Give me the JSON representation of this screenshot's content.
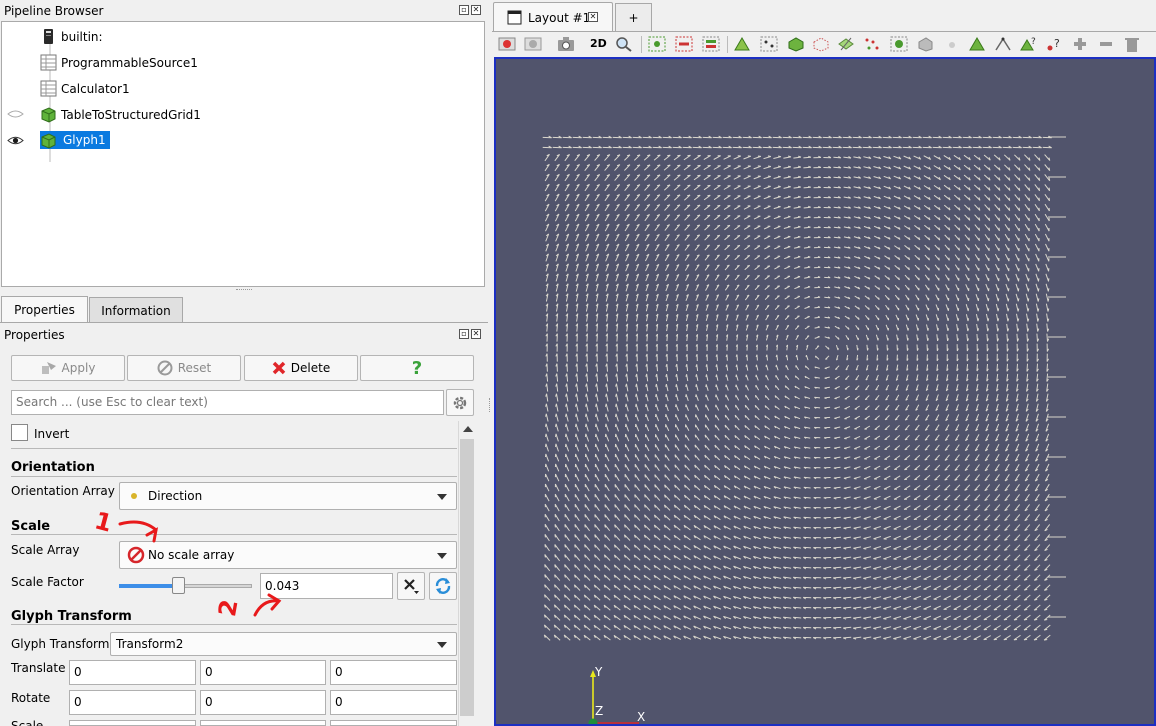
{
  "pipeline": {
    "title": "Pipeline Browser",
    "items": [
      {
        "label": "builtin:",
        "icon": "server-icon"
      },
      {
        "label": "ProgrammableSource1",
        "icon": "table-icon"
      },
      {
        "label": "Calculator1",
        "icon": "table-icon"
      },
      {
        "label": "TableToStructuredGrid1",
        "icon": "green-cube-icon",
        "visible": false
      },
      {
        "label": "Glyph1",
        "icon": "green-cube-icon",
        "visible": true,
        "selected": true
      }
    ]
  },
  "tabs": {
    "properties": "Properties",
    "information": "Information"
  },
  "properties": {
    "title": "Properties",
    "apply": "Apply",
    "reset": "Reset",
    "delete": "Delete",
    "help": "?",
    "search_placeholder": "Search ... (use Esc to clear text)",
    "invert": "Invert",
    "orientation": {
      "section": "Orientation",
      "array_label": "Orientation Array",
      "array_value": "Direction"
    },
    "scale": {
      "section": "Scale",
      "array_label": "Scale Array",
      "array_value": "No scale array",
      "factor_label": "Scale Factor",
      "factor_value": "0.043",
      "slider_level_percent": 44
    },
    "glyph_transform": {
      "section": "Glyph Transform",
      "label": "Glyph Transform",
      "value": "Transform2",
      "translate_label": "Translate",
      "translate": [
        "0",
        "0",
        "0"
      ],
      "rotate_label": "Rotate",
      "rotate": [
        "0",
        "0",
        "0"
      ],
      "scale_label": "Scale"
    }
  },
  "annotations": {
    "mark1": "1",
    "mark2": "2"
  },
  "layout": {
    "tab_label": "Layout #1",
    "add_tab": "+"
  },
  "toolbar": {
    "mode_2d": "2D"
  },
  "axes": {
    "y": "Y",
    "z": "Z",
    "x": "X"
  },
  "colors": {
    "render_background": "#51546c",
    "selection": "#0a7ae0",
    "delete_red": "#e0262a",
    "help_green": "#3aa23a",
    "glyph_arrows": "#d9d6cc"
  }
}
